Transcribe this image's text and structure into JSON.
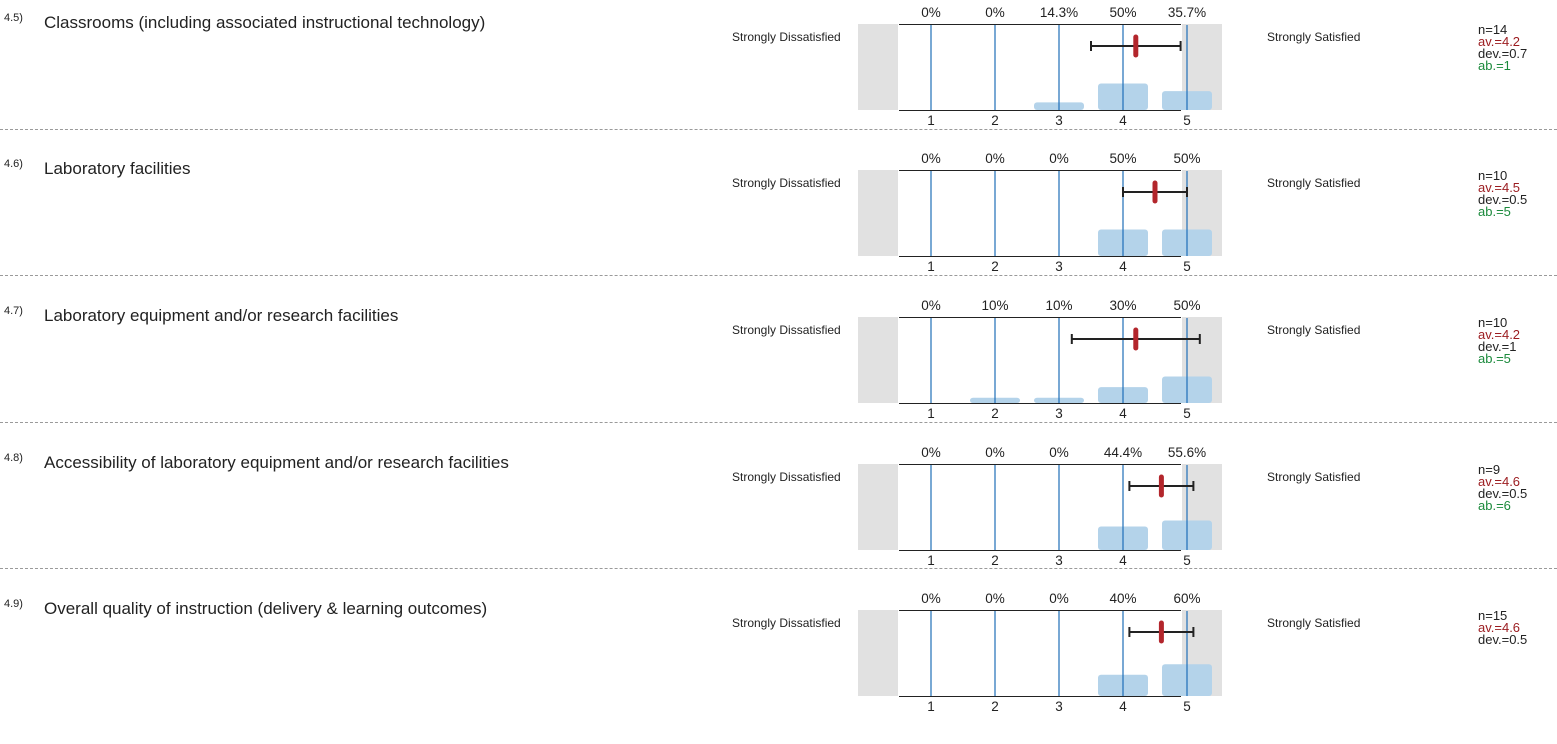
{
  "scale": {
    "left_label": "Strongly Dissatisfied",
    "right_label": "Strongly Satisfied",
    "ticks": [
      "1",
      "2",
      "3",
      "4",
      "5"
    ]
  },
  "colors": {
    "bar": "#b4d3ea",
    "gridline": "#1f6fb8",
    "mean_marker": "#b3262c",
    "whisker": "#222222",
    "side_box": "#e1e1e1",
    "av_text": "#9b1b1f",
    "ab_text": "#1b8a3c"
  },
  "chart_data": [
    {
      "type": "bar",
      "number": "4.5)",
      "question": "Classrooms (including associated instructional technology)",
      "categories": [
        1,
        2,
        3,
        4,
        5
      ],
      "pct_labels": [
        "0%",
        "0%",
        "14.3%",
        "50%",
        "35.7%"
      ],
      "values": [
        0,
        0,
        14.3,
        50,
        35.7
      ],
      "mean": 4.2,
      "deviation": 0.7,
      "n_text": "n=14",
      "av_text": "av.=4.2",
      "dev_text": "dev.=0.7",
      "ab_text": "ab.=1"
    },
    {
      "type": "bar",
      "number": "4.6)",
      "question": "Laboratory facilities",
      "categories": [
        1,
        2,
        3,
        4,
        5
      ],
      "pct_labels": [
        "0%",
        "0%",
        "0%",
        "50%",
        "50%"
      ],
      "values": [
        0,
        0,
        0,
        50,
        50
      ],
      "mean": 4.5,
      "deviation": 0.5,
      "n_text": "n=10",
      "av_text": "av.=4.5",
      "dev_text": "dev.=0.5",
      "ab_text": "ab.=5"
    },
    {
      "type": "bar",
      "number": "4.7)",
      "question": "Laboratory equipment and/or research facilities",
      "categories": [
        1,
        2,
        3,
        4,
        5
      ],
      "pct_labels": [
        "0%",
        "10%",
        "10%",
        "30%",
        "50%"
      ],
      "values": [
        0,
        10,
        10,
        30,
        50
      ],
      "mean": 4.2,
      "deviation": 1,
      "n_text": "n=10",
      "av_text": "av.=4.2",
      "dev_text": "dev.=1",
      "ab_text": "ab.=5"
    },
    {
      "type": "bar",
      "number": "4.8)",
      "question": "Accessibility of laboratory equipment and/or research facilities",
      "categories": [
        1,
        2,
        3,
        4,
        5
      ],
      "pct_labels": [
        "0%",
        "0%",
        "0%",
        "44.4%",
        "55.6%"
      ],
      "values": [
        0,
        0,
        0,
        44.4,
        55.6
      ],
      "mean": 4.6,
      "deviation": 0.5,
      "n_text": "n=9",
      "av_text": "av.=4.6",
      "dev_text": "dev.=0.5",
      "ab_text": "ab.=6"
    },
    {
      "type": "bar",
      "number": "4.9)",
      "question": "Overall quality of instruction (delivery & learning outcomes)",
      "categories": [
        1,
        2,
        3,
        4,
        5
      ],
      "pct_labels": [
        "0%",
        "0%",
        "0%",
        "40%",
        "60%"
      ],
      "values": [
        0,
        0,
        0,
        40,
        60
      ],
      "mean": 4.6,
      "deviation": 0.5,
      "n_text": "n=15",
      "av_text": "av.=4.6",
      "dev_text": "dev.=0.5",
      "ab_text": ""
    }
  ]
}
